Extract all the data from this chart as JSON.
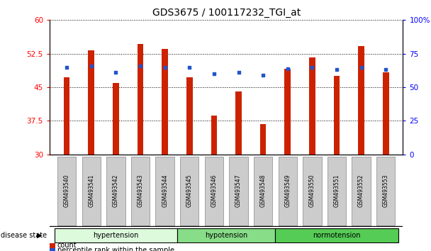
{
  "title": "GDS3675 / 100117232_TGI_at",
  "samples": [
    "GSM493540",
    "GSM493541",
    "GSM493542",
    "GSM493543",
    "GSM493544",
    "GSM493545",
    "GSM493546",
    "GSM493547",
    "GSM493548",
    "GSM493549",
    "GSM493550",
    "GSM493551",
    "GSM493552",
    "GSM493553"
  ],
  "bar_values": [
    47.2,
    53.2,
    46.0,
    54.7,
    53.5,
    47.2,
    38.6,
    44.1,
    36.8,
    49.2,
    51.6,
    47.5,
    54.2,
    48.4
  ],
  "bar_baseline": 30,
  "percentile_values": [
    65,
    66,
    61,
    66,
    65,
    65,
    60,
    61,
    59,
    64,
    65,
    63,
    65,
    63
  ],
  "bar_color": "#cc2200",
  "dot_color": "#2255cc",
  "ylim_left": [
    30,
    60
  ],
  "ylim_right": [
    0,
    100
  ],
  "yticks_left": [
    30,
    37.5,
    45,
    52.5,
    60
  ],
  "yticks_right": [
    0,
    25,
    50,
    75,
    100
  ],
  "ytick_labels_left": [
    "30",
    "37.5",
    "45",
    "52.5",
    "60"
  ],
  "ytick_labels_right": [
    "0",
    "25",
    "50",
    "75",
    "100%"
  ],
  "groups": [
    {
      "label": "hypertension",
      "start": 0,
      "end": 4,
      "color": "#ddfadd"
    },
    {
      "label": "hypotension",
      "start": 5,
      "end": 8,
      "color": "#88dd88"
    },
    {
      "label": "normotension",
      "start": 9,
      "end": 13,
      "color": "#55cc55"
    }
  ],
  "disease_state_label": "disease state",
  "legend_items": [
    {
      "label": "count",
      "color": "#cc2200"
    },
    {
      "label": "percentile rank within the sample",
      "color": "#2255cc"
    }
  ],
  "bg_color": "#ffffff",
  "bar_width": 0.25,
  "title_fontsize": 10,
  "tick_fontsize": 7.5,
  "label_fontsize": 7.5,
  "xtick_bg_color": "#cccccc"
}
